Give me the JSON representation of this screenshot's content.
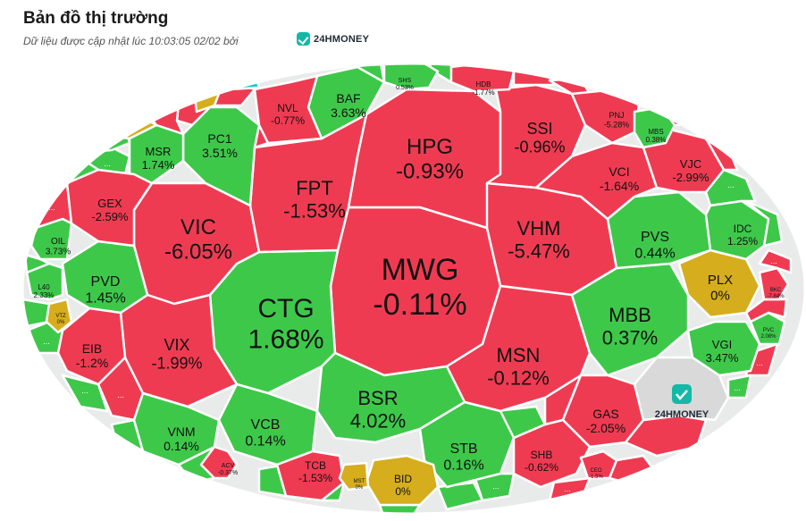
{
  "header": {
    "title": "Bản đồ thị trường",
    "subtitle": "Dữ liệu được cập nhật lúc 10:03:05 02/02 bởi",
    "brand": "24HMONEY"
  },
  "colors": {
    "up": "#3ec84a",
    "down": "#ef3b52",
    "flat": "#d6ad1c",
    "neutral": "#d9d9d9",
    "cyan": "#1cc9c9",
    "stroke": "#ffffff"
  },
  "chart_data": {
    "type": "treemap",
    "title": "Bản đồ thị trường",
    "cells": [
      {
        "ticker": "MWG",
        "change": "-0.11%"
      },
      {
        "ticker": "CTG",
        "change": "1.68%"
      },
      {
        "ticker": "HPG",
        "change": "-0.93%"
      },
      {
        "ticker": "VIC",
        "change": "-6.05%"
      },
      {
        "ticker": "FPT",
        "change": "-1.53%"
      },
      {
        "ticker": "VHM",
        "change": "-5.47%"
      },
      {
        "ticker": "MSN",
        "change": "-0.12%"
      },
      {
        "ticker": "BSR",
        "change": "4.02%"
      },
      {
        "ticker": "MBB",
        "change": "0.37%"
      },
      {
        "ticker": "VIX",
        "change": "-1.99%"
      },
      {
        "ticker": "SSI",
        "change": "-0.96%"
      },
      {
        "ticker": "PVD",
        "change": "1.45%"
      },
      {
        "ticker": "PVS",
        "change": "0.44%"
      },
      {
        "ticker": "STB",
        "change": "0.16%"
      },
      {
        "ticker": "VCB",
        "change": "0.14%"
      },
      {
        "ticker": "VNM",
        "change": "0.14%"
      },
      {
        "ticker": "GAS",
        "change": "-2.05%"
      },
      {
        "ticker": "PC1",
        "change": "3.51%"
      },
      {
        "ticker": "MSR",
        "change": "1.74%"
      },
      {
        "ticker": "BAF",
        "change": "3.63%"
      },
      {
        "ticker": "NVL",
        "change": "-0.77%"
      },
      {
        "ticker": "GEX",
        "change": "-2.59%"
      },
      {
        "ticker": "VCI",
        "change": "-1.64%"
      },
      {
        "ticker": "VJC",
        "change": "-2.99%"
      },
      {
        "ticker": "PLX",
        "change": "0%"
      },
      {
        "ticker": "VGI",
        "change": "3.47%"
      },
      {
        "ticker": "IDC",
        "change": "1.25%"
      },
      {
        "ticker": "EIB",
        "change": "-1.2%"
      },
      {
        "ticker": "SHB",
        "change": "-0.62%"
      },
      {
        "ticker": "TCB",
        "change": "-1.53%"
      },
      {
        "ticker": "BID",
        "change": "0%"
      },
      {
        "ticker": "OIL",
        "change": "3.73%"
      },
      {
        "ticker": "L40",
        "change": "2.33%"
      },
      {
        "ticker": "VTZ",
        "change": "0%"
      },
      {
        "ticker": "ACV",
        "change": "-0.37%"
      },
      {
        "ticker": "MST",
        "change": "0%"
      },
      {
        "ticker": "PNJ",
        "change": "-5.28%"
      },
      {
        "ticker": "MBS",
        "change": "0.38%"
      },
      {
        "ticker": "HDB",
        "change": "-1.77%"
      },
      {
        "ticker": "SHS",
        "change": "0.53%"
      },
      {
        "ticker": "BKC",
        "change": "-7.84%"
      },
      {
        "ticker": "PVC",
        "change": "2.08%"
      },
      {
        "ticker": "CEO",
        "change": "-1.5%"
      }
    ],
    "more_label": "...",
    "watermark": "24HMONEY"
  }
}
